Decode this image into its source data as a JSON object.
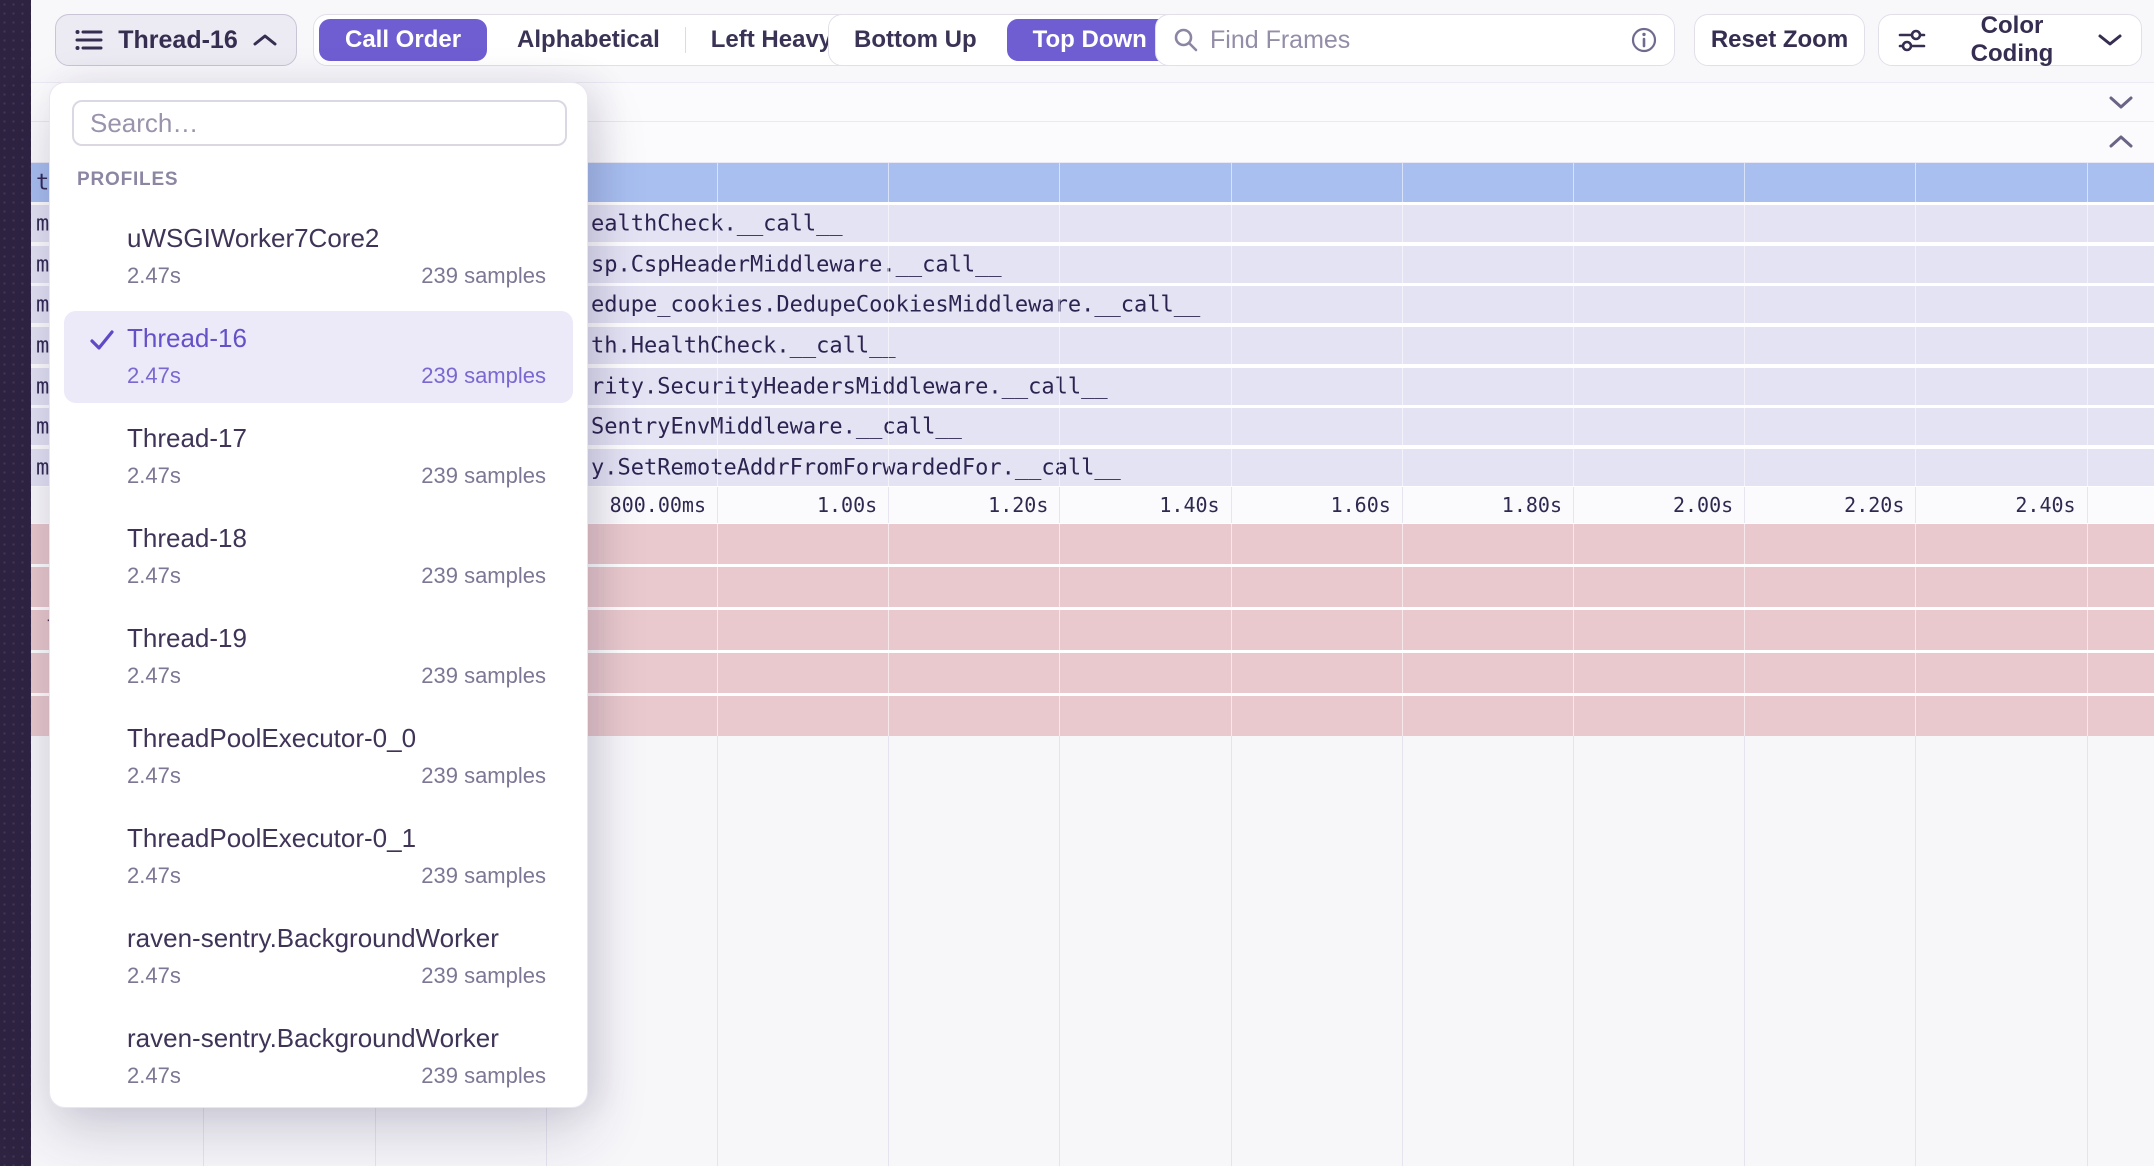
{
  "toolbar": {
    "thread_selector": {
      "label": "Thread-16"
    },
    "sort_toggle": {
      "options": [
        "Call Order",
        "Alphabetical",
        "Left Heavy"
      ],
      "selected": "Call Order"
    },
    "view_toggle": {
      "options": [
        "Bottom Up",
        "Top Down"
      ],
      "selected": "Top Down"
    },
    "find_frames": {
      "placeholder": "Find Frames"
    },
    "reset_zoom_label": "Reset Zoom",
    "color_coding_label": "Color Coding"
  },
  "dropdown": {
    "search_placeholder": "Search…",
    "section_label": "PROFILES",
    "items": [
      {
        "name": "uWSGIWorker7Core2",
        "duration": "2.47s",
        "samples": "239 samples",
        "selected": false
      },
      {
        "name": "Thread-16",
        "duration": "2.47s",
        "samples": "239 samples",
        "selected": true
      },
      {
        "name": "Thread-17",
        "duration": "2.47s",
        "samples": "239 samples",
        "selected": false
      },
      {
        "name": "Thread-18",
        "duration": "2.47s",
        "samples": "239 samples",
        "selected": false
      },
      {
        "name": "Thread-19",
        "duration": "2.47s",
        "samples": "239 samples",
        "selected": false
      },
      {
        "name": "ThreadPoolExecutor-0_0",
        "duration": "2.47s",
        "samples": "239 samples",
        "selected": false
      },
      {
        "name": "ThreadPoolExecutor-0_1",
        "duration": "2.47s",
        "samples": "239 samples",
        "selected": false
      },
      {
        "name": "raven-sentry.BackgroundWorker",
        "duration": "2.47s",
        "samples": "239 samples",
        "selected": false
      },
      {
        "name": "raven-sentry.BackgroundWorker",
        "duration": "2.47s",
        "samples": "239 samples",
        "selected": false
      }
    ]
  },
  "flamegraph": {
    "selected_row": {
      "sliver": "t"
    },
    "rows": [
      {
        "sliver": "m",
        "label": "ealthCheck.__call__"
      },
      {
        "sliver": "m",
        "label": "sp.CspHeaderMiddleware.__call__"
      },
      {
        "sliver": "m",
        "label": "edupe_cookies.DedupeCookiesMiddleware.__call__"
      },
      {
        "sliver": "m",
        "label": "th.HealthCheck.__call__"
      },
      {
        "sliver": "m",
        "label": "rity.SecurityHeadersMiddleware.__call__"
      },
      {
        "sliver": "m",
        "label": "SentryEnvMiddleware.__call__"
      },
      {
        "sliver": "m",
        "label": "y.SetRemoteAddrFromForwardedFor.__call__"
      }
    ],
    "pink_rows": [
      {
        "sliver": "-"
      },
      {
        "sliver": "-"
      },
      {
        "sliver": "l"
      },
      {
        "sliver": "-"
      },
      {
        "sliver": "-"
      }
    ],
    "axis_ticks": [
      "800.00ms",
      "1.00s",
      "1.20s",
      "1.40s",
      "1.60s",
      "1.80s",
      "2.00s",
      "2.20s",
      "2.40s"
    ]
  },
  "colors": {
    "accent_purple": "#6e5ed2",
    "selected_row_blue": "#a8bff0",
    "frame_row_lavender": "#e4e3f4",
    "frame_row_pink": "#e9c9cd",
    "sidebar_strip": "#2e2341"
  }
}
